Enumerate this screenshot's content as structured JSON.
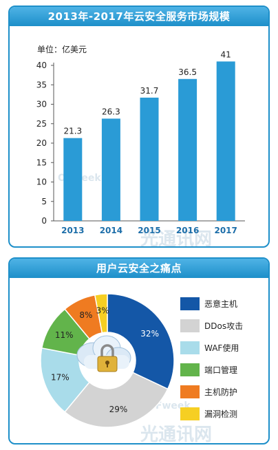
{
  "colors": {
    "header": "#1d8fc9",
    "bar": "#2a9bd6",
    "pie": [
      "#1457a7",
      "#d3d3d3",
      "#a9dcea",
      "#62b44b",
      "#ef7b21",
      "#f6cf23"
    ]
  },
  "chart_data": [
    {
      "type": "bar",
      "title": "2013年-2017年云安全服务市场规模",
      "unit_label": "单位：亿美元",
      "categories": [
        "2013",
        "2014",
        "2015",
        "2016",
        "2017"
      ],
      "values": [
        21.3,
        26.3,
        31.7,
        36.5,
        41
      ],
      "value_labels": [
        "21.3",
        "26.3",
        "31.7",
        "36.5",
        "41"
      ],
      "yticks": [
        0,
        5,
        10,
        15,
        20,
        25,
        30,
        35,
        40
      ],
      "ylim": [
        0,
        40
      ],
      "grid": false
    },
    {
      "type": "pie",
      "title": "用户云安全之痛点",
      "labels": [
        "恶意主机",
        "DDos攻击",
        "WAF使用",
        "端口管理",
        "主机防护",
        "漏洞检测"
      ],
      "values": [
        32,
        29,
        17,
        11,
        8,
        3
      ],
      "value_labels": [
        "32%",
        "29%",
        "17%",
        "11%",
        "8%",
        "3%"
      ],
      "legend_position": "right"
    }
  ],
  "watermark": {
    "logo": "OFweek",
    "text": "光通讯网"
  }
}
